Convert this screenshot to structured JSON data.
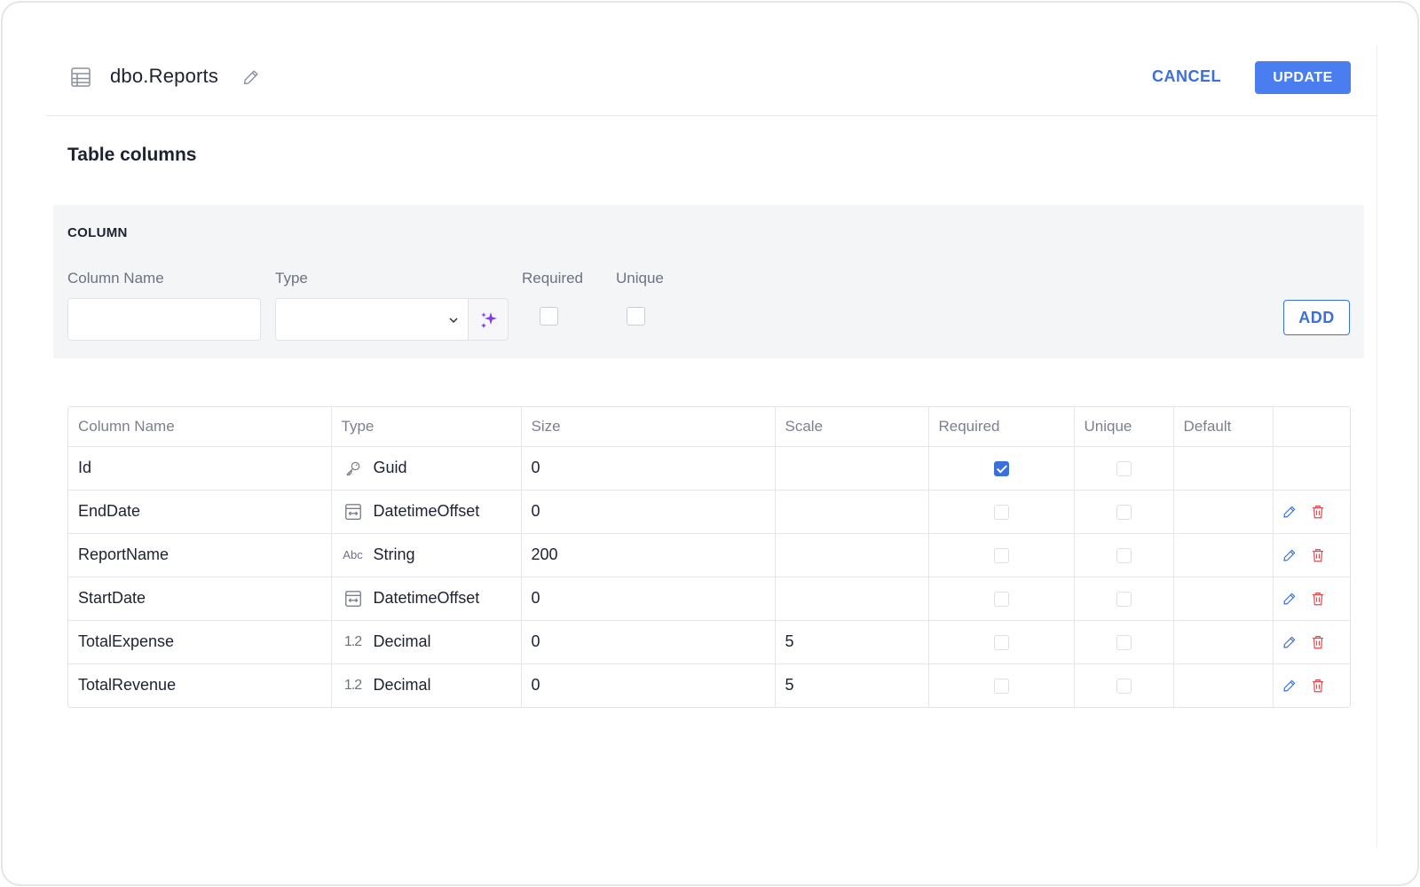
{
  "header": {
    "title": "dbo.Reports",
    "cancel_label": "CANCEL",
    "update_label": "UPDATE"
  },
  "section_title": "Table columns",
  "add_panel": {
    "heading": "COLUMN",
    "column_name_label": "Column Name",
    "column_name_value": "",
    "type_label": "Type",
    "type_value": "",
    "required_label": "Required",
    "required_checked": false,
    "unique_label": "Unique",
    "unique_checked": false,
    "add_label": "ADD"
  },
  "table": {
    "headers": [
      "Column Name",
      "Type",
      "Size",
      "Scale",
      "Required",
      "Unique",
      "Default",
      ""
    ],
    "rows": [
      {
        "name": "Id",
        "type": "Guid",
        "type_icon": "key-icon",
        "size": "0",
        "scale": "",
        "required": true,
        "unique": false,
        "default": "",
        "editable": false
      },
      {
        "name": "EndDate",
        "type": "DatetimeOffset",
        "type_icon": "datetime-icon",
        "size": "0",
        "scale": "",
        "required": false,
        "unique": false,
        "default": "",
        "editable": true
      },
      {
        "name": "ReportName",
        "type": "String",
        "type_icon": "abc-icon",
        "size": "200",
        "scale": "",
        "required": false,
        "unique": false,
        "default": "",
        "editable": true
      },
      {
        "name": "StartDate",
        "type": "DatetimeOffset",
        "type_icon": "datetime-icon",
        "size": "0",
        "scale": "",
        "required": false,
        "unique": false,
        "default": "",
        "editable": true
      },
      {
        "name": "TotalExpense",
        "type": "Decimal",
        "type_icon": "decimal-icon",
        "size": "0",
        "scale": "5",
        "required": false,
        "unique": false,
        "default": "",
        "editable": true
      },
      {
        "name": "TotalRevenue",
        "type": "Decimal",
        "type_icon": "decimal-icon",
        "size": "0",
        "scale": "5",
        "required": false,
        "unique": false,
        "default": "",
        "editable": true
      }
    ]
  },
  "colors": {
    "accent": "#4a7ef0",
    "link": "#3b6fde",
    "delete": "#e5484d",
    "ai": "#7b3fe4"
  }
}
